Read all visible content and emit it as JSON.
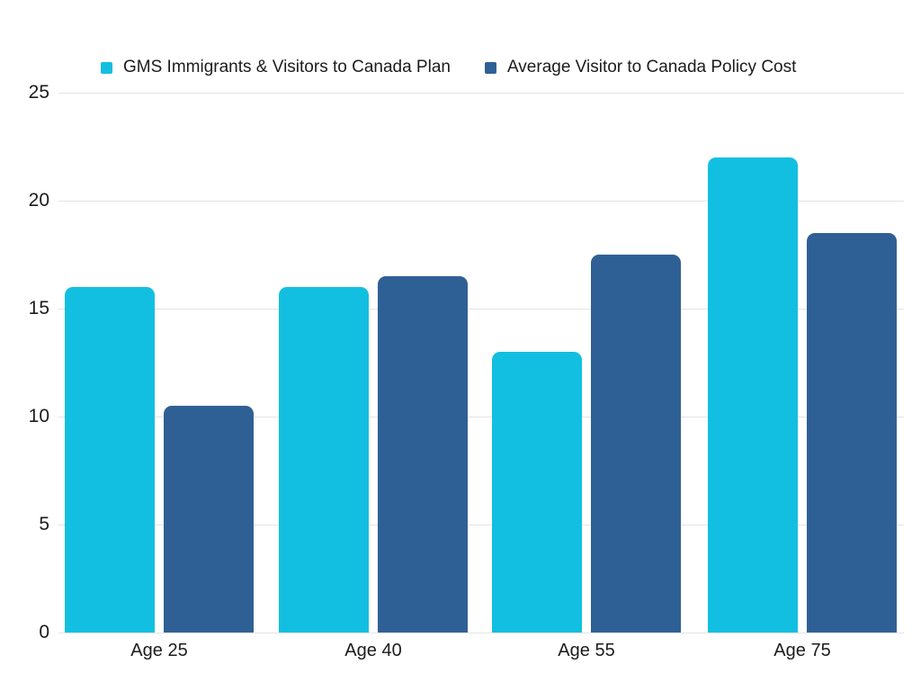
{
  "chart_data": {
    "type": "bar",
    "categories": [
      "Age 25",
      "Age 40",
      "Age 55",
      "Age 75"
    ],
    "series": [
      {
        "name": "GMS Immigrants & Visitors to Canada Plan",
        "color": "#13bfe0",
        "values": [
          16.0,
          16.0,
          13.0,
          22.0
        ]
      },
      {
        "name": "Average Visitor to Canada Policy Cost",
        "color": "#2f6095",
        "values": [
          10.5,
          16.5,
          17.5,
          18.5
        ]
      }
    ],
    "ylim": [
      0,
      25
    ],
    "yticks": [
      0,
      5,
      10,
      15,
      20,
      25
    ],
    "grid": "horizontal",
    "gridline_color": "#e3e3e3",
    "text_color": "#1c1c1c",
    "legend_position": "top",
    "background_color": "#ffffff"
  }
}
